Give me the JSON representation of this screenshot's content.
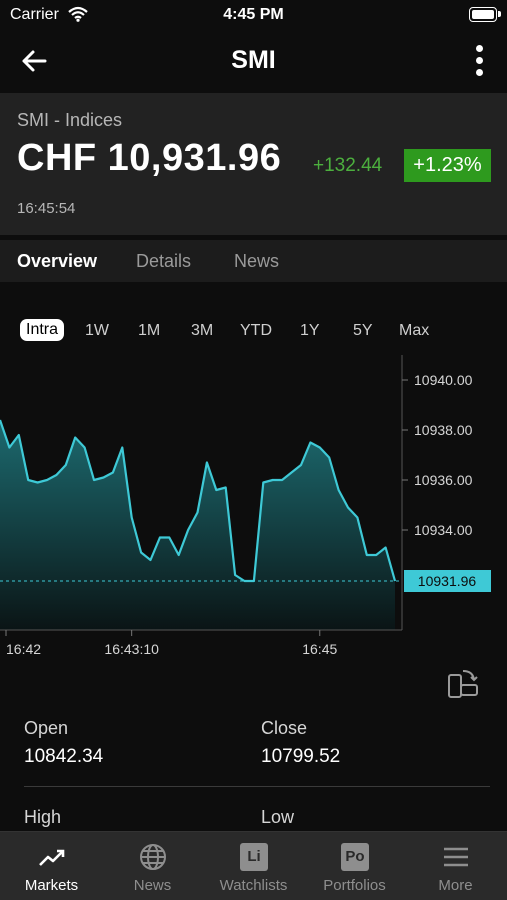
{
  "status_bar": {
    "carrier": "Carrier",
    "time": "4:45 PM"
  },
  "nav": {
    "title": "SMI"
  },
  "quote": {
    "subtitle": "SMI - Indices",
    "price": "CHF 10,931.96",
    "change": "+132.44",
    "change_pct": "+1.23%",
    "time": "16:45:54"
  },
  "tabs": [
    "Overview",
    "Details",
    "News"
  ],
  "ranges": [
    "Intra",
    "1W",
    "1M",
    "3M",
    "YTD",
    "1Y",
    "5Y",
    "Max"
  ],
  "chart_data": {
    "type": "area",
    "x": [
      0,
      1,
      2,
      3,
      4,
      5,
      6,
      7,
      8,
      9,
      10,
      11,
      12,
      13,
      14,
      15,
      16,
      17,
      18,
      19,
      20,
      21,
      22,
      23,
      24,
      25,
      26,
      27,
      28,
      29,
      30,
      31,
      32,
      33,
      34,
      35,
      36,
      37,
      38,
      39,
      40,
      41,
      42
    ],
    "values": [
      10938.4,
      10937.3,
      10937.8,
      10936.0,
      10935.9,
      10936.0,
      10936.2,
      10936.6,
      10937.7,
      10937.3,
      10936.0,
      10936.1,
      10936.3,
      10937.3,
      10934.5,
      10933.1,
      10932.8,
      10933.7,
      10933.7,
      10933.0,
      10934.0,
      10934.7,
      10936.7,
      10935.6,
      10935.7,
      10932.2,
      10931.96,
      10931.96,
      10935.9,
      10936.0,
      10936.0,
      10936.3,
      10936.6,
      10937.5,
      10937.3,
      10936.9,
      10935.6,
      10934.9,
      10934.5,
      10933.0,
      10933.0,
      10933.3,
      10931.96
    ],
    "x_tick_labels": [
      "16:42",
      "16:43:10",
      "16:45"
    ],
    "y_tick_labels": [
      "10940.00",
      "10938.00",
      "10936.00",
      "10934.00"
    ],
    "ylim": [
      10930.0,
      10941.0
    ],
    "last_value_label": "10931.96",
    "line_color": "#3ec9d6",
    "grid": false
  },
  "stats": {
    "open_label": "Open",
    "open_value": "10842.34",
    "close_label": "Close",
    "close_value": "10799.52",
    "high_label": "High",
    "low_label": "Low"
  },
  "tab_bar": [
    {
      "label": "Markets",
      "icon": "trending-up-icon"
    },
    {
      "label": "News",
      "icon": "globe-icon"
    },
    {
      "label": "Watchlists",
      "icon": "Li"
    },
    {
      "label": "Portfolios",
      "icon": "Po"
    },
    {
      "label": "More",
      "icon": "menu-icon"
    }
  ],
  "colors": {
    "up": "#4caf3e",
    "up_badge": "#2e9a1e",
    "accent": "#3ec9d6"
  }
}
